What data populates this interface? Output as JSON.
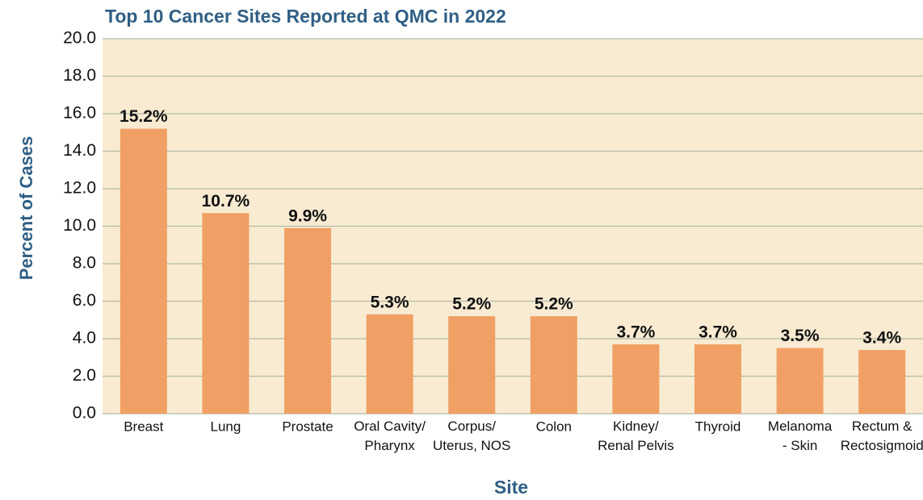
{
  "chart_data": {
    "type": "bar",
    "title": "Top 10 Cancer Sites Reported at QMC in 2022",
    "x_label": "Site",
    "y_label": "Percent of Cases",
    "categories": [
      "Breast",
      "Lung",
      "Prostate",
      "Oral Cavity/\nPharynx",
      "Corpus/\nUterus, NOS",
      "Colon",
      "Kidney/\nRenal Pelvis",
      "Thyroid",
      "Melanoma\n- Skin",
      "Rectum &\nRectosigmoid"
    ],
    "values": [
      15.2,
      10.7,
      9.9,
      5.3,
      5.2,
      5.2,
      3.7,
      3.7,
      3.5,
      3.4
    ],
    "value_labels": [
      "15.2%",
      "10.7%",
      "9.9%",
      "5.3%",
      "5.2%",
      "5.2%",
      "3.7%",
      "3.7%",
      "3.5%",
      "3.4%"
    ],
    "color": "#f0a064",
    "ylim": [
      0,
      20
    ],
    "yticks": [
      {
        "value": 0,
        "label": "0.0"
      },
      {
        "value": 2,
        "label": "2.0"
      },
      {
        "value": 4,
        "label": "4.0"
      },
      {
        "value": 6,
        "label": "6.0"
      },
      {
        "value": 8,
        "label": "8.0"
      },
      {
        "value": 10,
        "label": "10.0"
      },
      {
        "value": 12,
        "label": "12.0"
      },
      {
        "value": 14,
        "label": "14.0"
      },
      {
        "value": 16,
        "label": "16.0"
      },
      {
        "value": 18,
        "label": "18.0"
      },
      {
        "value": 20,
        "label": "20.0"
      }
    ],
    "grid": true
  }
}
